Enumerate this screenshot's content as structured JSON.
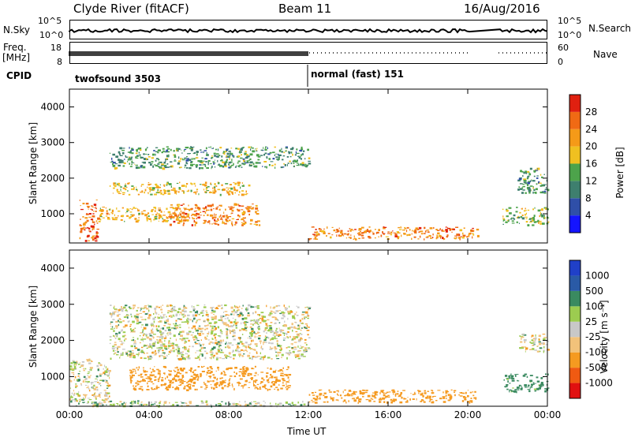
{
  "header": {
    "station": "Clyde River (fitACF)",
    "beam": "Beam 11",
    "date": "16/Aug/2016"
  },
  "strip1": {
    "left_label": "N.Sky",
    "right_label": "N.Search",
    "left_ticks": [
      "10^5",
      "10^0"
    ],
    "right_ticks": [
      "10^5",
      "10^0"
    ]
  },
  "strip2": {
    "left_label_1": "Freq.",
    "left_label_2": "[MHz]",
    "right_label": "Nave",
    "left_ticks": [
      "18",
      "8"
    ],
    "right_ticks": [
      "60",
      "0"
    ]
  },
  "cpid": {
    "label": "CPID",
    "segment1": "twofsound 3503",
    "segment2": "normal (fast) 151"
  },
  "colors": {
    "power": [
      "#1414ff",
      "#2f4fa8",
      "#3e7f6e",
      "#4da34b",
      "#f0c020",
      "#f59a18",
      "#f06a14",
      "#e02010"
    ],
    "velocity": [
      "#e01010",
      "#f05a12",
      "#f59a20",
      "#f2c27a",
      "#c8c8c8",
      "#9ccc50",
      "#3a8a60",
      "#2a5aa6",
      "#2040c8"
    ]
  },
  "chart_data": [
    {
      "type": "heatmap",
      "title": "",
      "ylabel": "Slant Range [km]",
      "xlabel": "",
      "x_ticks": [
        "00:00",
        "04:00",
        "08:00",
        "12:00",
        "16:00",
        "20:00",
        "00:00"
      ],
      "y_ticks": [
        "1000",
        "2000",
        "3000",
        "4000"
      ],
      "ylim": [
        180,
        4500
      ],
      "xlim_hours": [
        0,
        24
      ],
      "colorbar": {
        "label": "Power [dB]",
        "ticks": [
          "4",
          "8",
          "12",
          "16",
          "20",
          "24",
          "28"
        ]
      },
      "regions": [
        {
          "t0": 0.5,
          "t1": 1.4,
          "r0": 250,
          "r1": 1400,
          "value": 28
        },
        {
          "t0": 1.4,
          "t1": 6.0,
          "r0": 800,
          "r1": 1200,
          "value": 22
        },
        {
          "t0": 5.0,
          "t1": 9.5,
          "r0": 700,
          "r1": 1300,
          "value": 26
        },
        {
          "t0": 2.0,
          "t1": 9.0,
          "r0": 1550,
          "r1": 1900,
          "value": 21
        },
        {
          "t0": 2.0,
          "t1": 12.0,
          "r0": 2300,
          "r1": 2900,
          "value": 14
        },
        {
          "t0": 12.0,
          "t1": 20.5,
          "r0": 300,
          "r1": 650,
          "value": 26
        },
        {
          "t0": 21.7,
          "t1": 24.0,
          "r0": 700,
          "r1": 1200,
          "value": 18
        },
        {
          "t0": 22.5,
          "t1": 24.0,
          "r0": 1600,
          "r1": 2300,
          "value": 14
        }
      ]
    },
    {
      "type": "heatmap",
      "title": "",
      "ylabel": "Slant Range [km]",
      "xlabel": "Time UT",
      "x_ticks": [
        "00:00",
        "04:00",
        "08:00",
        "12:00",
        "16:00",
        "20:00",
        "00:00"
      ],
      "y_ticks": [
        "1000",
        "2000",
        "3000",
        "4000"
      ],
      "ylim": [
        180,
        4500
      ],
      "xlim_hours": [
        0,
        24
      ],
      "colorbar": {
        "label": "Velocity [m s⁻¹]",
        "ticks": [
          "1000",
          "500",
          "100",
          "25",
          "-25",
          "-100",
          "-500",
          "-1000"
        ]
      },
      "regions": [
        {
          "t0": 0.0,
          "t1": 2.0,
          "r0": 300,
          "r1": 1500,
          "value": 0
        },
        {
          "t0": 2.0,
          "t1": 12.0,
          "r0": 1500,
          "r1": 3000,
          "value": 0
        },
        {
          "t0": 3.0,
          "t1": 11.0,
          "r0": 650,
          "r1": 1300,
          "value": -300
        },
        {
          "t0": 12.0,
          "t1": 20.5,
          "r0": 300,
          "r1": 650,
          "value": -300
        },
        {
          "t0": 0.0,
          "t1": 12.0,
          "r0": 200,
          "r1": 350,
          "value": 50
        },
        {
          "t0": 21.8,
          "t1": 24.0,
          "r0": 600,
          "r1": 1100,
          "value": 200
        },
        {
          "t0": 22.5,
          "t1": 24.0,
          "r0": 1700,
          "r1": 2200,
          "value": 0
        }
      ]
    }
  ]
}
